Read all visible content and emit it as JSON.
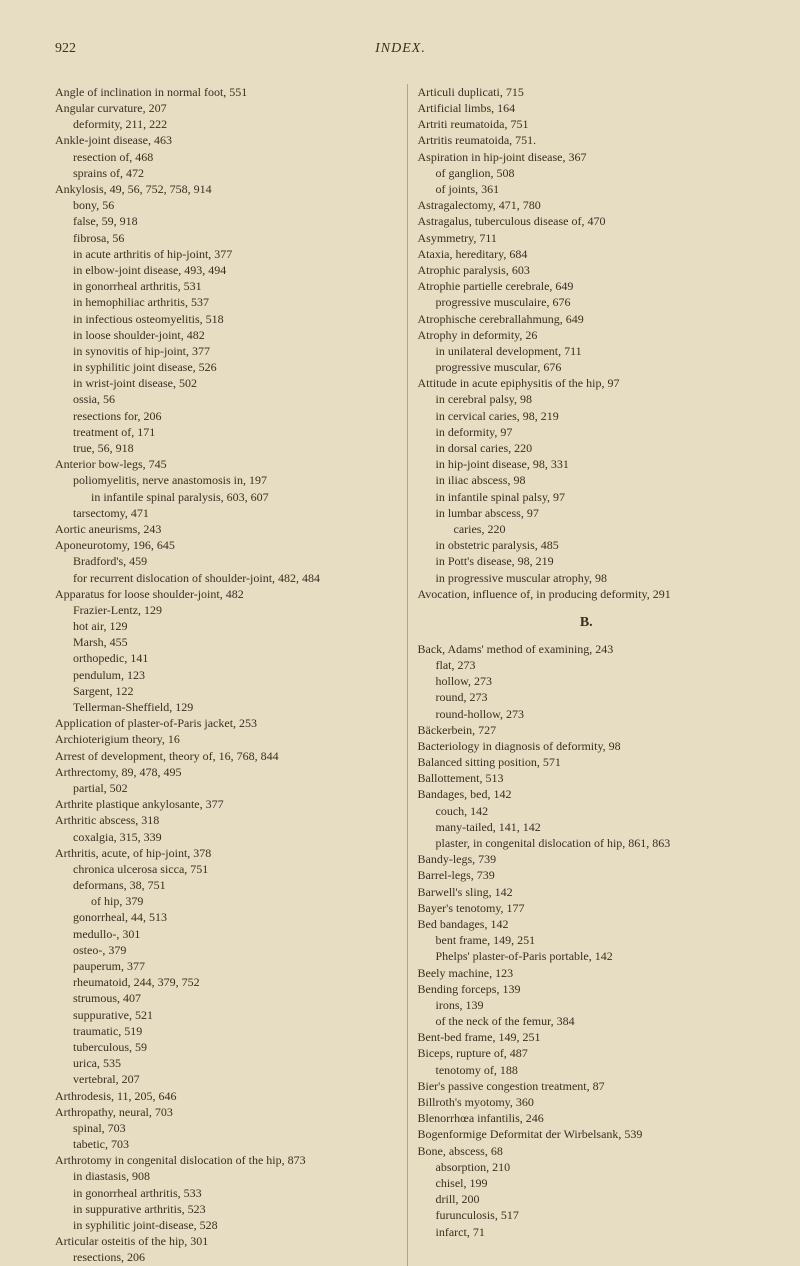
{
  "header": {
    "page_number": "922",
    "title": "INDEX."
  },
  "left_column": [
    {
      "t": "Angle of inclination in normal foot, 551",
      "c": "entry"
    },
    {
      "t": "Angular curvature, 207",
      "c": "entry"
    },
    {
      "t": "deformity, 211, 222",
      "c": "sub"
    },
    {
      "t": "Ankle-joint disease, 463",
      "c": "entry"
    },
    {
      "t": "resection of, 468",
      "c": "sub"
    },
    {
      "t": "sprains of, 472",
      "c": "sub"
    },
    {
      "t": "Ankylosis, 49, 56, 752, 758, 914",
      "c": "entry"
    },
    {
      "t": "bony, 56",
      "c": "sub"
    },
    {
      "t": "false, 59, 918",
      "c": "sub"
    },
    {
      "t": "fibrosa, 56",
      "c": "sub"
    },
    {
      "t": "in acute arthritis of hip-joint, 377",
      "c": "sub"
    },
    {
      "t": "in elbow-joint disease, 493, 494",
      "c": "sub"
    },
    {
      "t": "in gonorrheal arthritis, 531",
      "c": "sub"
    },
    {
      "t": "in hemophiliac arthritis, 537",
      "c": "sub"
    },
    {
      "t": "in infectious osteomyelitis, 518",
      "c": "sub"
    },
    {
      "t": "in loose shoulder-joint, 482",
      "c": "sub"
    },
    {
      "t": "in synovitis of hip-joint, 377",
      "c": "sub"
    },
    {
      "t": "in syphilitic joint disease, 526",
      "c": "sub"
    },
    {
      "t": "in wrist-joint disease, 502",
      "c": "sub"
    },
    {
      "t": "ossia, 56",
      "c": "sub"
    },
    {
      "t": "resections for, 206",
      "c": "sub"
    },
    {
      "t": "treatment of, 171",
      "c": "sub"
    },
    {
      "t": "true, 56, 918",
      "c": "sub"
    },
    {
      "t": "Anterior bow-legs, 745",
      "c": "entry"
    },
    {
      "t": "poliomyelitis, nerve anastomosis in, 197",
      "c": "sub"
    },
    {
      "t": "in infantile spinal paralysis, 603, 607",
      "c": "sub2"
    },
    {
      "t": "tarsectomy, 471",
      "c": "sub"
    },
    {
      "t": "Aortic aneurisms, 243",
      "c": "entry"
    },
    {
      "t": "Aponeurotomy, 196, 645",
      "c": "entry"
    },
    {
      "t": "Bradford's, 459",
      "c": "sub"
    },
    {
      "t": "for recurrent dislocation of shoulder-joint, 482, 484",
      "c": "sub"
    },
    {
      "t": "Apparatus for loose shoulder-joint, 482",
      "c": "entry"
    },
    {
      "t": "Frazier-Lentz, 129",
      "c": "sub"
    },
    {
      "t": "hot air, 129",
      "c": "sub"
    },
    {
      "t": "Marsh, 455",
      "c": "sub"
    },
    {
      "t": "orthopedic, 141",
      "c": "sub"
    },
    {
      "t": "pendulum, 123",
      "c": "sub"
    },
    {
      "t": "Sargent, 122",
      "c": "sub"
    },
    {
      "t": "Tellerman-Sheffield, 129",
      "c": "sub"
    },
    {
      "t": "Application of plaster-of-Paris jacket, 253",
      "c": "entry"
    },
    {
      "t": "Archioterigium theory, 16",
      "c": "entry"
    },
    {
      "t": "Arrest of development, theory of, 16, 768, 844",
      "c": "entry"
    },
    {
      "t": "Arthrectomy, 89, 478, 495",
      "c": "entry"
    },
    {
      "t": "partial, 502",
      "c": "sub"
    },
    {
      "t": "Arthrite plastique ankylosante, 377",
      "c": "entry"
    },
    {
      "t": "Arthritic abscess, 318",
      "c": "entry"
    },
    {
      "t": "coxalgia, 315, 339",
      "c": "sub"
    },
    {
      "t": "Arthritis, acute, of hip-joint, 378",
      "c": "entry"
    },
    {
      "t": "chronica ulcerosa sicca, 751",
      "c": "sub"
    },
    {
      "t": "deformans, 38, 751",
      "c": "sub"
    },
    {
      "t": "of hip, 379",
      "c": "sub2"
    },
    {
      "t": "gonorrheal, 44, 513",
      "c": "sub"
    },
    {
      "t": "medullo-, 301",
      "c": "sub"
    },
    {
      "t": "osteo-, 379",
      "c": "sub"
    },
    {
      "t": "pauperum, 377",
      "c": "sub"
    },
    {
      "t": "rheumatoid, 244, 379, 752",
      "c": "sub"
    },
    {
      "t": "strumous, 407",
      "c": "sub"
    },
    {
      "t": "suppurative, 521",
      "c": "sub"
    },
    {
      "t": "traumatic, 519",
      "c": "sub"
    },
    {
      "t": "tuberculous, 59",
      "c": "sub"
    },
    {
      "t": "urica, 535",
      "c": "sub"
    },
    {
      "t": "vertebral, 207",
      "c": "sub"
    },
    {
      "t": "Arthrodesis, 11, 205, 646",
      "c": "entry"
    },
    {
      "t": "Arthropathy, neural, 703",
      "c": "entry"
    },
    {
      "t": "spinal, 703",
      "c": "sub"
    },
    {
      "t": "tabetic, 703",
      "c": "sub"
    },
    {
      "t": "Arthrotomy in congenital dislocation of the hip, 873",
      "c": "entry"
    },
    {
      "t": "in diastasis, 908",
      "c": "sub"
    },
    {
      "t": "in gonorrheal arthritis, 533",
      "c": "sub"
    },
    {
      "t": "in suppurative arthritis, 523",
      "c": "sub"
    },
    {
      "t": "in syphilitic joint-disease, 528",
      "c": "sub"
    },
    {
      "t": "Articular osteitis of the hip, 301",
      "c": "entry"
    },
    {
      "t": "resections, 206",
      "c": "sub"
    }
  ],
  "right_column": [
    {
      "t": "Articuli duplicati, 715",
      "c": "entry"
    },
    {
      "t": "Artificial limbs, 164",
      "c": "entry"
    },
    {
      "t": "Artriti reumatoida, 751",
      "c": "entry"
    },
    {
      "t": "Artritis reumatoida, 751.",
      "c": "entry"
    },
    {
      "t": "Aspiration in hip-joint disease, 367",
      "c": "entry"
    },
    {
      "t": "of ganglion, 508",
      "c": "sub"
    },
    {
      "t": "of joints, 361",
      "c": "sub"
    },
    {
      "t": "Astragalectomy, 471, 780",
      "c": "entry"
    },
    {
      "t": "Astragalus, tuberculous disease of, 470",
      "c": "entry"
    },
    {
      "t": "Asymmetry, 711",
      "c": "entry"
    },
    {
      "t": "Ataxia, hereditary, 684",
      "c": "entry"
    },
    {
      "t": "Atrophic paralysis, 603",
      "c": "entry"
    },
    {
      "t": "Atrophie partielle cerebrale, 649",
      "c": "entry"
    },
    {
      "t": "progressive musculaire, 676",
      "c": "sub"
    },
    {
      "t": "Atrophische cerebrallahmung, 649",
      "c": "entry"
    },
    {
      "t": "Atrophy in deformity, 26",
      "c": "entry"
    },
    {
      "t": "in unilateral development, 711",
      "c": "sub"
    },
    {
      "t": "progressive muscular, 676",
      "c": "sub"
    },
    {
      "t": "Attitude in acute epiphysitis of the hip, 97",
      "c": "entry"
    },
    {
      "t": "in cerebral palsy, 98",
      "c": "sub"
    },
    {
      "t": "in cervical caries, 98, 219",
      "c": "sub"
    },
    {
      "t": "in deformity, 97",
      "c": "sub"
    },
    {
      "t": "in dorsal caries, 220",
      "c": "sub"
    },
    {
      "t": "in hip-joint disease, 98, 331",
      "c": "sub"
    },
    {
      "t": "in iliac abscess, 98",
      "c": "sub"
    },
    {
      "t": "in infantile spinal palsy, 97",
      "c": "sub"
    },
    {
      "t": "in lumbar abscess, 97",
      "c": "sub"
    },
    {
      "t": "caries, 220",
      "c": "sub2"
    },
    {
      "t": "in obstetric paralysis, 485",
      "c": "sub"
    },
    {
      "t": "in Pott's disease, 98, 219",
      "c": "sub"
    },
    {
      "t": "in progressive muscular atrophy, 98",
      "c": "sub"
    },
    {
      "t": "Avocation, influence of, in producing deformity, 291",
      "c": "entry"
    }
  ],
  "section_b": "B.",
  "right_column_b": [
    {
      "t": "Back, Adams' method of examining, 243",
      "c": "entry"
    },
    {
      "t": "flat, 273",
      "c": "sub"
    },
    {
      "t": "hollow, 273",
      "c": "sub"
    },
    {
      "t": "round, 273",
      "c": "sub"
    },
    {
      "t": "round-hollow, 273",
      "c": "sub"
    },
    {
      "t": "Bäckerbein, 727",
      "c": "entry"
    },
    {
      "t": "Bacteriology in diagnosis of deformity, 98",
      "c": "entry"
    },
    {
      "t": "Balanced sitting position, 571",
      "c": "entry"
    },
    {
      "t": "Ballottement, 513",
      "c": "entry"
    },
    {
      "t": "Bandages, bed, 142",
      "c": "entry"
    },
    {
      "t": "couch, 142",
      "c": "sub"
    },
    {
      "t": "many-tailed, 141, 142",
      "c": "sub"
    },
    {
      "t": "plaster, in congenital dislocation of hip, 861, 863",
      "c": "sub"
    },
    {
      "t": "Bandy-legs, 739",
      "c": "entry"
    },
    {
      "t": "Barrel-legs, 739",
      "c": "entry"
    },
    {
      "t": "Barwell's sling, 142",
      "c": "entry"
    },
    {
      "t": "Bayer's tenotomy, 177",
      "c": "entry"
    },
    {
      "t": "Bed bandages, 142",
      "c": "entry"
    },
    {
      "t": "bent frame, 149, 251",
      "c": "sub"
    },
    {
      "t": "Phelps' plaster-of-Paris portable, 142",
      "c": "sub"
    },
    {
      "t": "Beely machine, 123",
      "c": "entry"
    },
    {
      "t": "Bending forceps, 139",
      "c": "entry"
    },
    {
      "t": "irons, 139",
      "c": "sub"
    },
    {
      "t": "of the neck of the femur, 384",
      "c": "sub"
    },
    {
      "t": "Bent-bed frame, 149, 251",
      "c": "entry"
    },
    {
      "t": "Biceps, rupture of, 487",
      "c": "entry"
    },
    {
      "t": "tenotomy of, 188",
      "c": "sub"
    },
    {
      "t": "Bier's passive congestion treatment, 87",
      "c": "entry"
    },
    {
      "t": "Billroth's myotomy, 360",
      "c": "entry"
    },
    {
      "t": "Blenorrhœa infantilis, 246",
      "c": "entry"
    },
    {
      "t": "Bogenformige Deformitat der Wirbelsank, 539",
      "c": "entry"
    },
    {
      "t": "Bone, abscess, 68",
      "c": "entry"
    },
    {
      "t": "absorption, 210",
      "c": "sub"
    },
    {
      "t": "chisel, 199",
      "c": "sub"
    },
    {
      "t": "drill, 200",
      "c": "sub"
    },
    {
      "t": "furunculosis, 517",
      "c": "sub"
    },
    {
      "t": "infarct, 71",
      "c": "sub"
    }
  ]
}
